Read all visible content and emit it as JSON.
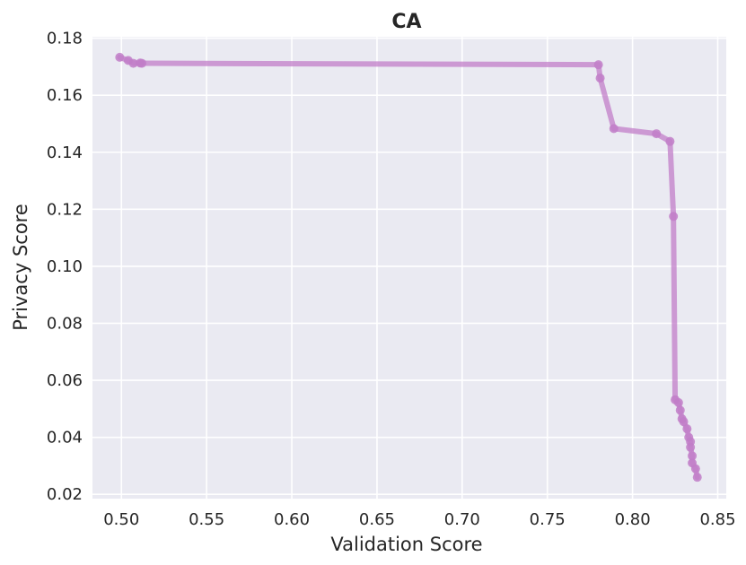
{
  "chart_data": {
    "type": "line",
    "title": "CA",
    "xlabel": "Validation Score",
    "ylabel": "Privacy Score",
    "xlim": [
      0.483,
      0.855
    ],
    "ylim": [
      0.0185,
      0.1805
    ],
    "grid": true,
    "x_ticks": [
      "0.50",
      "0.55",
      "0.60",
      "0.65",
      "0.70",
      "0.75",
      "0.80",
      "0.85"
    ],
    "y_ticks": [
      "0.02",
      "0.04",
      "0.06",
      "0.08",
      "0.10",
      "0.12",
      "0.14",
      "0.16",
      "0.18"
    ],
    "series": [
      {
        "color": "#c17ec8",
        "x": [
          0.499,
          0.504,
          0.507,
          0.511,
          0.512,
          0.78,
          0.781,
          0.789,
          0.814,
          0.822,
          0.824,
          0.825,
          0.827,
          0.828,
          0.829,
          0.83,
          0.832,
          0.833,
          0.834,
          0.834,
          0.835,
          0.835,
          0.837,
          0.838
        ],
        "y": [
          0.1733,
          0.1722,
          0.1712,
          0.1713,
          0.1712,
          0.1707,
          0.166,
          0.1483,
          0.1465,
          0.1438,
          0.1175,
          0.0532,
          0.0522,
          0.0495,
          0.0465,
          0.0455,
          0.043,
          0.04,
          0.0385,
          0.0365,
          0.0335,
          0.031,
          0.029,
          0.026
        ]
      }
    ]
  }
}
